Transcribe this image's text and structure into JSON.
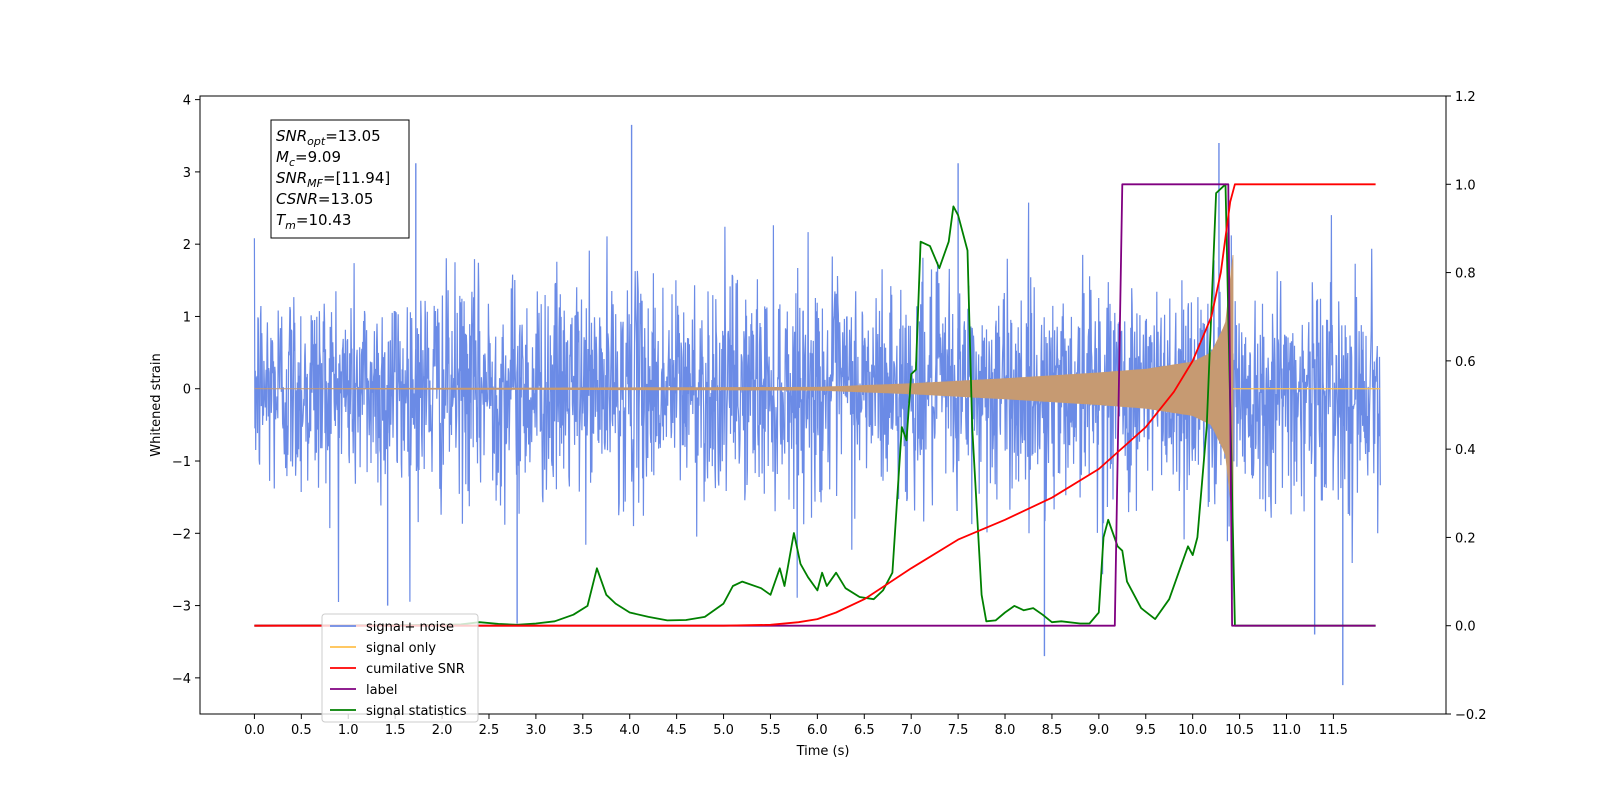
{
  "chart_data": {
    "type": "line",
    "xlabel": "Time (s)",
    "ylabel": "Whitened strain",
    "xlim": [
      -0.58,
      12.7
    ],
    "xticks": [
      0.0,
      0.5,
      1.0,
      1.5,
      2.0,
      2.5,
      3.0,
      3.5,
      4.0,
      4.5,
      5.0,
      5.5,
      6.0,
      6.5,
      7.0,
      7.5,
      8.0,
      8.5,
      9.0,
      9.5,
      10.0,
      10.5,
      11.0,
      11.5
    ],
    "xtick_labels": [
      "0.0",
      "0.5",
      "1.0",
      "1.5",
      "2.0",
      "2.5",
      "3.0",
      "3.5",
      "4.0",
      "4.5",
      "5.0",
      "5.5",
      "6.0",
      "6.5",
      "7.0",
      "7.5",
      "8.0",
      "8.5",
      "9.0",
      "9.5",
      "10.0",
      "10.5",
      "11.0",
      "11.5"
    ],
    "ylim_left": [
      -4.5,
      4.05
    ],
    "yticks_left": [
      -4,
      -3,
      -2,
      -1,
      0,
      1,
      2,
      3,
      4
    ],
    "ytick_labels_left": [
      "−4",
      "−3",
      "−2",
      "−1",
      "0",
      "1",
      "2",
      "3",
      "4"
    ],
    "ylim_right": [
      -0.2,
      1.2
    ],
    "yticks_right": [
      -0.2,
      0.0,
      0.2,
      0.4,
      0.6,
      0.8,
      1.0,
      1.2
    ],
    "ytick_labels_right": [
      "−0.2",
      "0.0",
      "0.2",
      "0.4",
      "0.6",
      "0.8",
      "1.0",
      "1.2"
    ],
    "grid": false,
    "legend_position": "lower-left",
    "colors": {
      "noise": "#6b8be6",
      "signal": "#ffc04d",
      "signal_fill": "#c69a72",
      "snr": "#ff0000",
      "label": "#800080",
      "stats": "#008000"
    },
    "annotation": {
      "lines": [
        {
          "main": "SNR",
          "sub": "opt",
          "rest": "=13.05"
        },
        {
          "main": "M",
          "sub": "c",
          "rest": "=9.09"
        },
        {
          "main": "SNR",
          "sub": "MF",
          "rest": "=[11.94]"
        },
        {
          "main": "CSNR",
          "sub": "",
          "rest": "=13.05"
        },
        {
          "main": "T",
          "sub": "m",
          "rest": "=10.43"
        }
      ]
    },
    "series": [
      {
        "name": "signal+ noise",
        "axis": "left",
        "kind": "noise",
        "x_range": [
          0.0,
          12.0
        ],
        "envelope_std": 0.75,
        "notable_spikes": [
          {
            "x": 4.02,
            "y": 3.65
          },
          {
            "x": 1.72,
            "y": 3.12
          },
          {
            "x": 7.5,
            "y": 3.12
          },
          {
            "x": 10.28,
            "y": 3.4
          },
          {
            "x": 11.6,
            "y": -4.1
          },
          {
            "x": 8.42,
            "y": -3.7
          },
          {
            "x": 11.3,
            "y": -3.4
          },
          {
            "x": 2.8,
            "y": -3.25
          },
          {
            "x": 1.42,
            "y": -3.0
          }
        ]
      },
      {
        "name": "signal only",
        "axis": "left",
        "kind": "chirp",
        "x_range": [
          0.0,
          10.43
        ],
        "amplitude_points": [
          [
            0.0,
            0.0
          ],
          [
            6.0,
            0.02
          ],
          [
            7.0,
            0.07
          ],
          [
            8.0,
            0.14
          ],
          [
            9.0,
            0.22
          ],
          [
            9.5,
            0.27
          ],
          [
            10.0,
            0.37
          ],
          [
            10.2,
            0.5
          ],
          [
            10.35,
            0.9
          ],
          [
            10.43,
            1.85
          ]
        ]
      },
      {
        "name": "cumilative SNR",
        "axis": "right",
        "x": [
          0.0,
          5.0,
          5.5,
          5.8,
          6.0,
          6.2,
          6.5,
          7.0,
          7.5,
          8.0,
          8.5,
          9.0,
          9.5,
          9.8,
          10.0,
          10.2,
          10.3,
          10.4,
          10.45,
          11.95
        ],
        "values": [
          0.0,
          0.0,
          0.002,
          0.008,
          0.015,
          0.03,
          0.06,
          0.13,
          0.195,
          0.24,
          0.29,
          0.355,
          0.45,
          0.53,
          0.6,
          0.7,
          0.8,
          0.96,
          1.0,
          1.0
        ]
      },
      {
        "name": "label",
        "axis": "right",
        "x": [
          0.0,
          9.17,
          9.25,
          10.38,
          10.42,
          11.95
        ],
        "values": [
          0.0,
          0.0,
          1.0,
          1.0,
          0.0,
          0.0
        ]
      },
      {
        "name": "signal statistics",
        "axis": "right",
        "x": [
          0.0,
          2.0,
          2.2,
          2.4,
          2.6,
          2.8,
          3.0,
          3.2,
          3.4,
          3.55,
          3.65,
          3.75,
          3.85,
          4.0,
          4.2,
          4.4,
          4.6,
          4.8,
          5.0,
          5.1,
          5.2,
          5.4,
          5.5,
          5.55,
          5.6,
          5.65,
          5.75,
          5.82,
          5.9,
          6.0,
          6.05,
          6.1,
          6.2,
          6.3,
          6.45,
          6.6,
          6.7,
          6.8,
          6.9,
          6.95,
          7.0,
          7.05,
          7.1,
          7.2,
          7.3,
          7.4,
          7.45,
          7.5,
          7.6,
          7.65,
          7.75,
          7.8,
          7.9,
          8.0,
          8.1,
          8.2,
          8.3,
          8.4,
          8.5,
          8.6,
          8.8,
          8.9,
          9.0,
          9.05,
          9.1,
          9.2,
          9.25,
          9.3,
          9.45,
          9.6,
          9.75,
          9.85,
          9.95,
          10.0,
          10.05,
          10.15,
          10.25,
          10.35,
          10.4,
          10.45,
          11.95
        ],
        "values": [
          0.0,
          0.002,
          0.003,
          0.008,
          0.004,
          0.002,
          0.005,
          0.01,
          0.025,
          0.045,
          0.13,
          0.07,
          0.05,
          0.03,
          0.02,
          0.012,
          0.013,
          0.02,
          0.05,
          0.09,
          0.1,
          0.085,
          0.07,
          0.1,
          0.13,
          0.09,
          0.21,
          0.14,
          0.11,
          0.08,
          0.12,
          0.09,
          0.12,
          0.085,
          0.065,
          0.06,
          0.08,
          0.12,
          0.45,
          0.42,
          0.57,
          0.58,
          0.87,
          0.86,
          0.81,
          0.87,
          0.95,
          0.93,
          0.85,
          0.45,
          0.07,
          0.01,
          0.012,
          0.03,
          0.045,
          0.035,
          0.04,
          0.025,
          0.008,
          0.01,
          0.005,
          0.005,
          0.03,
          0.2,
          0.24,
          0.18,
          0.17,
          0.1,
          0.04,
          0.015,
          0.06,
          0.12,
          0.18,
          0.16,
          0.2,
          0.45,
          0.98,
          1.0,
          0.5,
          0.0,
          0.0
        ]
      }
    ]
  }
}
